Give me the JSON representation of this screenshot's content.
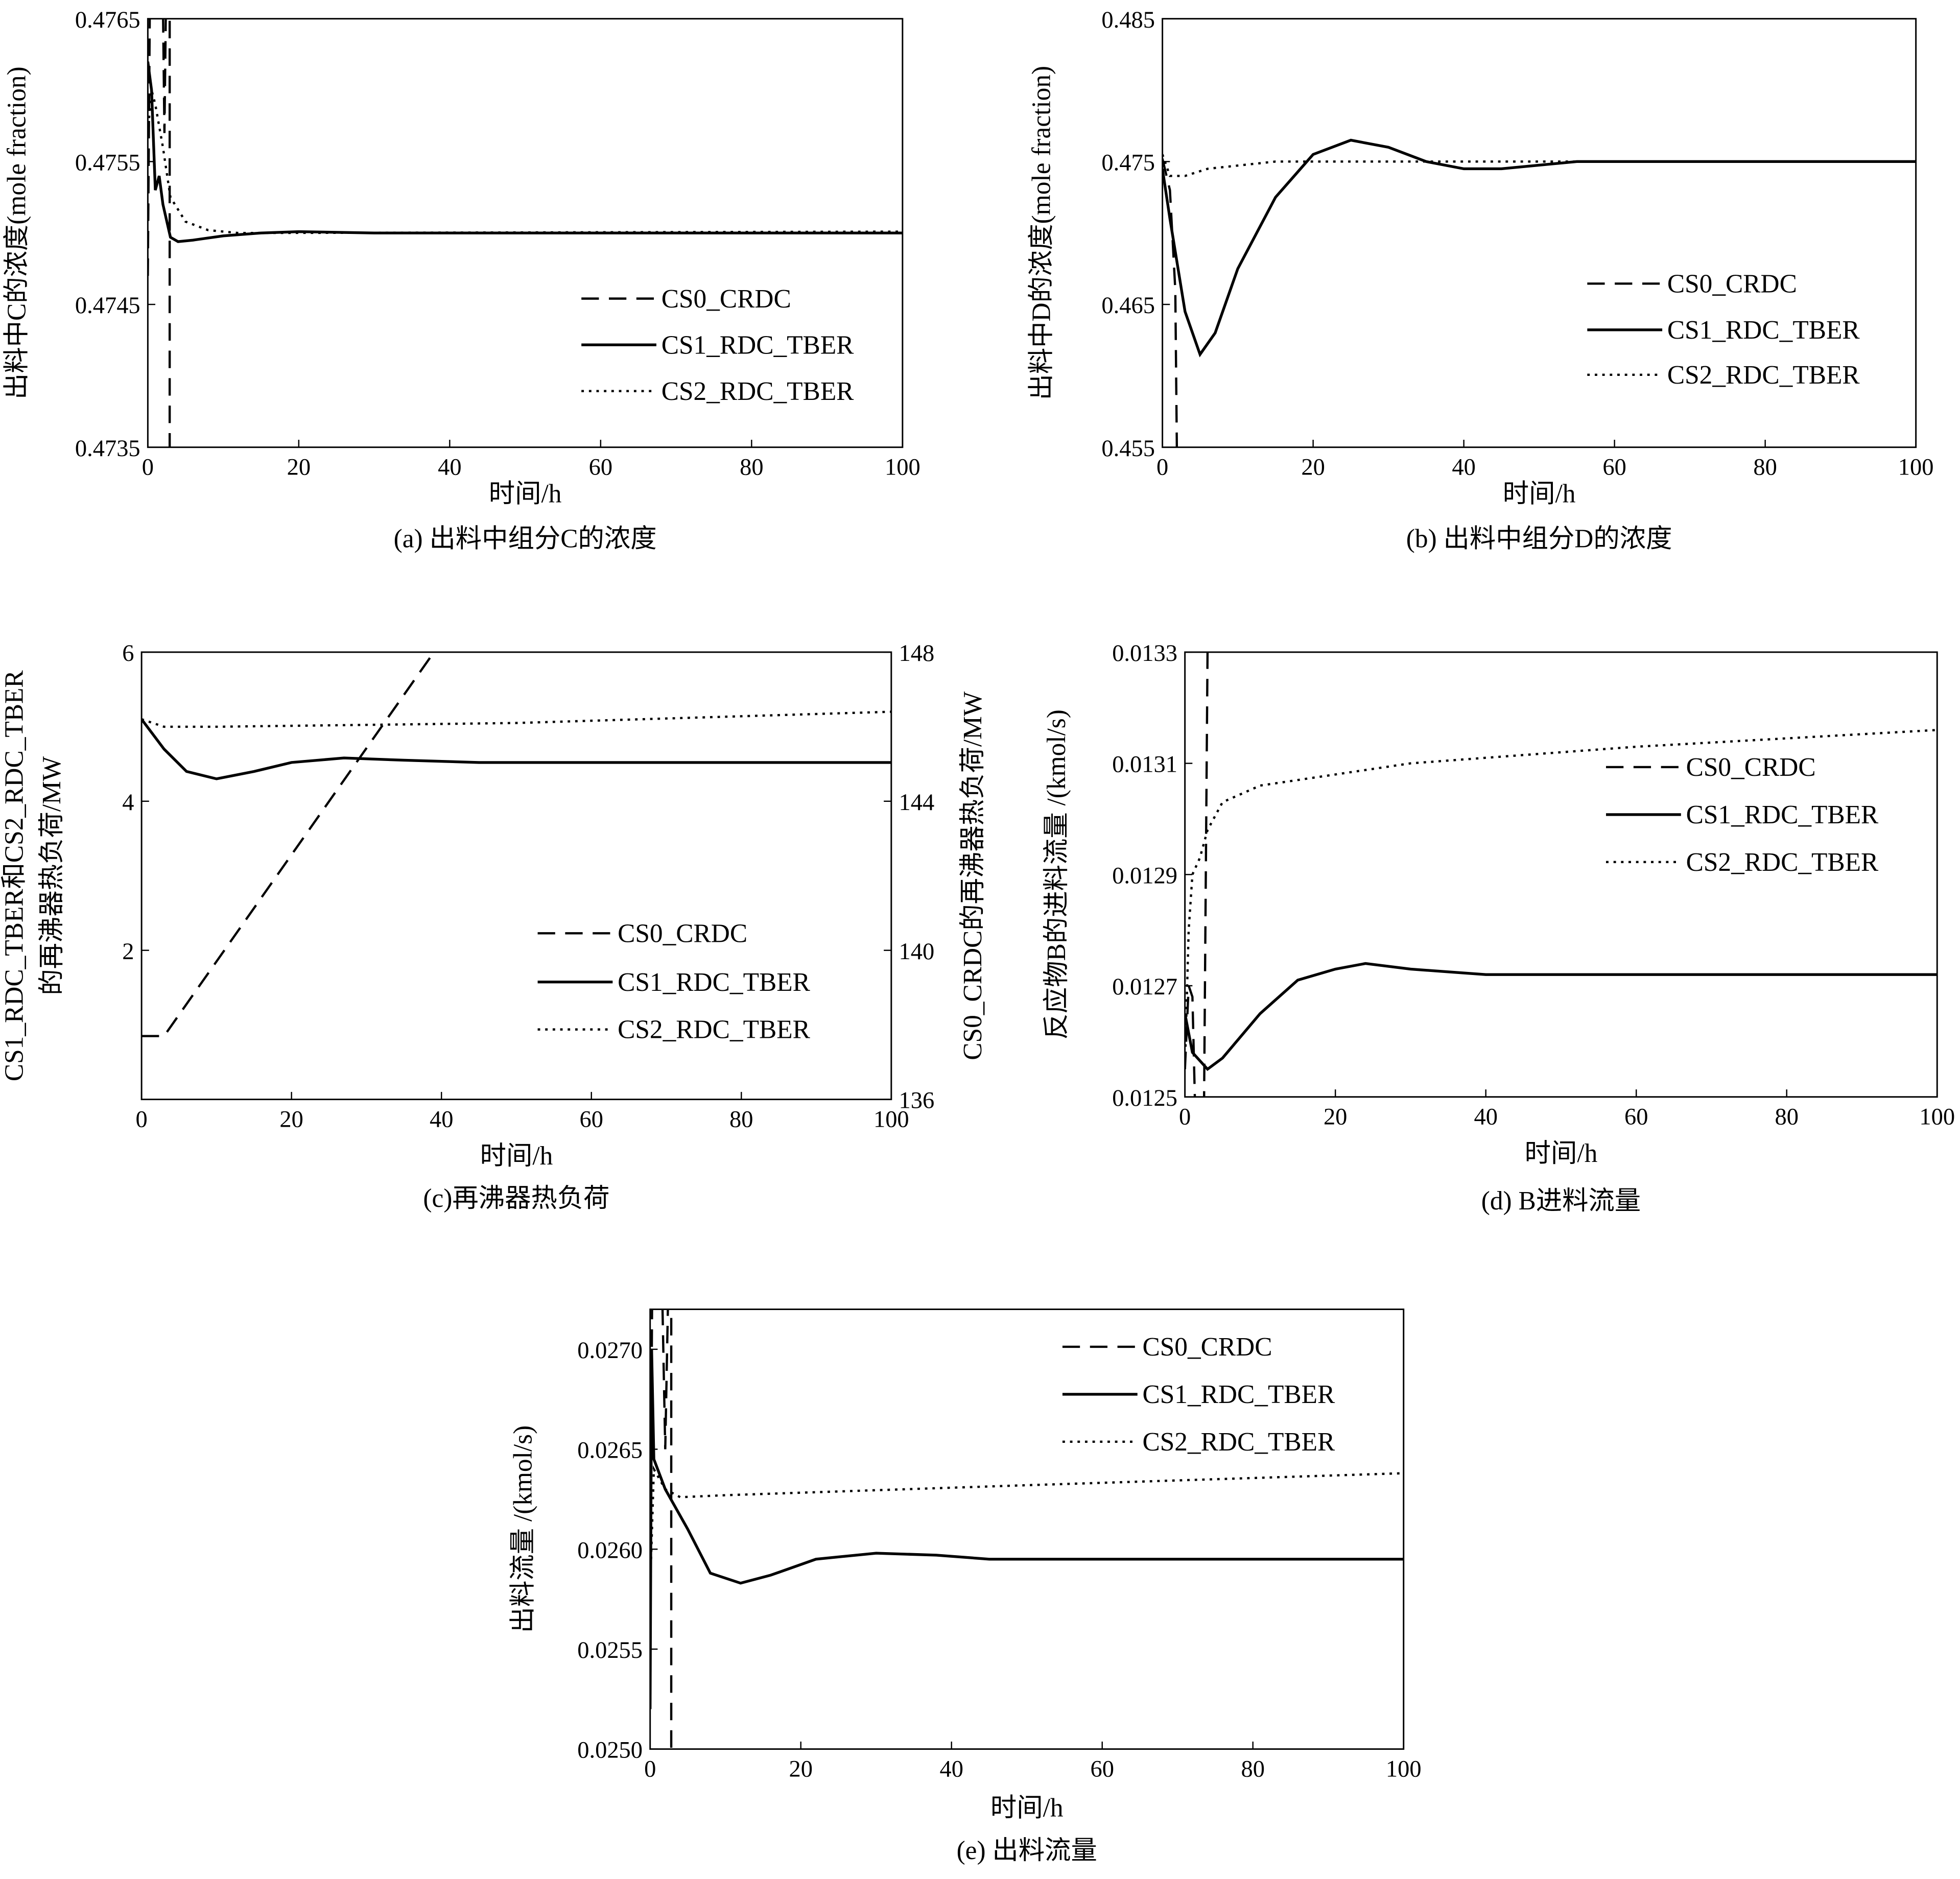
{
  "chart_data": [
    {
      "id": "a",
      "type": "line",
      "caption": "(a) 出料中组分C的浓度",
      "xlabel": "时间/h",
      "ylabel": [
        "出料中C的浓度(mole fraction)"
      ],
      "xlim": [
        0,
        100
      ],
      "ylim": [
        0.4735,
        0.4765
      ],
      "xticks": [
        "0",
        "20",
        "40",
        "60",
        "80",
        "100"
      ],
      "yticks": [
        "0.4735",
        "0.4745",
        "0.4755",
        "0.4765"
      ],
      "legend": "center-right",
      "series": [
        {
          "name": "CS0_CRDC",
          "style": "dashed",
          "points": [
            [
              0,
              0.4747
            ],
            [
              0.4,
              0.4775
            ],
            [
              1.8,
              0.4775
            ],
            [
              2.2,
              0.4757
            ],
            [
              2.6,
              0.4775
            ],
            [
              2.9,
              0.4775
            ],
            [
              2.9,
              0.473
            ]
          ]
        },
        {
          "name": "CS1_RDC_TBER",
          "style": "solid",
          "points": [
            [
              0,
              0.4762
            ],
            [
              0.5,
              0.476
            ],
            [
              1,
              0.4753
            ],
            [
              1.5,
              0.4754
            ],
            [
              2,
              0.4752
            ],
            [
              3,
              0.47497
            ],
            [
              4,
              0.47494
            ],
            [
              6,
              0.47495
            ],
            [
              10,
              0.47498
            ],
            [
              15,
              0.475
            ],
            [
              20,
              0.47501
            ],
            [
              30,
              0.475
            ],
            [
              100,
              0.475
            ]
          ]
        },
        {
          "name": "CS2_RDC_TBER",
          "style": "dotted",
          "points": [
            [
              0,
              0.4757
            ],
            [
              0.5,
              0.476
            ],
            [
              1,
              0.4759
            ],
            [
              2,
              0.4756
            ],
            [
              3,
              0.47525
            ],
            [
              5,
              0.47508
            ],
            [
              8,
              0.47502
            ],
            [
              12,
              0.475
            ],
            [
              100,
              0.47501
            ]
          ]
        }
      ]
    },
    {
      "id": "b",
      "type": "line",
      "caption": "(b) 出料中组分D的浓度",
      "xlabel": "时间/h",
      "ylabel": [
        "出料中D的浓度(mole fraction)"
      ],
      "xlim": [
        0,
        100
      ],
      "ylim": [
        0.455,
        0.485
      ],
      "xticks": [
        "0",
        "20",
        "40",
        "60",
        "80",
        "100"
      ],
      "yticks": [
        "0.455",
        "0.465",
        "0.475",
        "0.485"
      ],
      "legend": "center-right",
      "series": [
        {
          "name": "CS0_CRDC",
          "style": "dashed",
          "points": [
            [
              0,
              0.4752
            ],
            [
              1,
              0.473
            ],
            [
              1.7,
              0.466
            ],
            [
              2,
              0.45
            ]
          ]
        },
        {
          "name": "CS1_RDC_TBER",
          "style": "solid",
          "points": [
            [
              0,
              0.4745
            ],
            [
              1,
              0.471
            ],
            [
              3,
              0.4645
            ],
            [
              5,
              0.4615
            ],
            [
              7,
              0.463
            ],
            [
              10,
              0.4675
            ],
            [
              15,
              0.4725
            ],
            [
              20,
              0.4755
            ],
            [
              25,
              0.4765
            ],
            [
              30,
              0.476
            ],
            [
              35,
              0.475
            ],
            [
              40,
              0.4745
            ],
            [
              45,
              0.4745
            ],
            [
              55,
              0.475
            ],
            [
              100,
              0.475
            ]
          ]
        },
        {
          "name": "CS2_RDC_TBER",
          "style": "dotted",
          "points": [
            [
              0,
              0.4755
            ],
            [
              1,
              0.474
            ],
            [
              3,
              0.474
            ],
            [
              6,
              0.4745
            ],
            [
              15,
              0.475
            ],
            [
              100,
              0.475
            ]
          ]
        }
      ]
    },
    {
      "id": "c",
      "type": "line",
      "caption": "(c)再沸器热负荷",
      "xlabel": "时间/h",
      "ylabel": [
        "CS1_RDC_TBER和CS2_RDC_TBER",
        "的再沸器热负荷/MW"
      ],
      "ylabel_right": "CS0_CRDC的再沸器热负荷/MW",
      "xlim": [
        0,
        100
      ],
      "ylim": [
        0,
        6
      ],
      "ylim_right": [
        136,
        148
      ],
      "xticks": [
        "0",
        "20",
        "40",
        "60",
        "80",
        "100"
      ],
      "yticks": [
        "2",
        "4",
        "6"
      ],
      "yticks_right": [
        "136",
        "140",
        "144",
        "148"
      ],
      "legend": "center-right",
      "series": [
        {
          "name": "CS0_CRDC",
          "style": "dashed",
          "axis": "right",
          "points": [
            [
              0,
              137.7
            ],
            [
              3,
              137.7
            ],
            [
              39,
              148
            ]
          ]
        },
        {
          "name": "CS1_RDC_TBER",
          "style": "solid",
          "points": [
            [
              0,
              5.1
            ],
            [
              3,
              4.7
            ],
            [
              6,
              4.4
            ],
            [
              10,
              4.3
            ],
            [
              15,
              4.4
            ],
            [
              20,
              4.52
            ],
            [
              27,
              4.58
            ],
            [
              35,
              4.55
            ],
            [
              45,
              4.52
            ],
            [
              100,
              4.52
            ]
          ]
        },
        {
          "name": "CS2_RDC_TBER",
          "style": "dotted",
          "points": [
            [
              0,
              5.1
            ],
            [
              3,
              5.0
            ],
            [
              10,
              5.0
            ],
            [
              50,
              5.05
            ],
            [
              100,
              5.2
            ]
          ]
        }
      ]
    },
    {
      "id": "d",
      "type": "line",
      "caption": "(d) B进料流量",
      "xlabel": "时间/h",
      "ylabel": [
        "反应物B的进料流量 /(kmol/s)"
      ],
      "xlim": [
        0,
        100
      ],
      "ylim": [
        0.0125,
        0.0133
      ],
      "xticks": [
        "0",
        "20",
        "40",
        "60",
        "80",
        "100"
      ],
      "yticks": [
        "0.0125",
        "0.0127",
        "0.0129",
        "0.0131",
        "0.0133"
      ],
      "legend": "center-right",
      "series": [
        {
          "name": "CS0_CRDC",
          "style": "dashed",
          "points": [
            [
              0,
              0.01255
            ],
            [
              0.5,
              0.0127
            ],
            [
              1,
              0.01268
            ],
            [
              1.5,
              0.0124
            ],
            [
              2.5,
              0.0124
            ],
            [
              3,
              0.0133
            ]
          ]
        },
        {
          "name": "CS1_RDC_TBER",
          "style": "solid",
          "points": [
            [
              0,
              0.01265
            ],
            [
              1,
              0.01258
            ],
            [
              3,
              0.01255
            ],
            [
              5,
              0.01257
            ],
            [
              10,
              0.01265
            ],
            [
              15,
              0.01271
            ],
            [
              20,
              0.01273
            ],
            [
              24,
              0.01274
            ],
            [
              30,
              0.01273
            ],
            [
              40,
              0.01272
            ],
            [
              100,
              0.01272
            ]
          ]
        },
        {
          "name": "CS2_RDC_TBER",
          "style": "dotted",
          "points": [
            [
              0,
              0.01255
            ],
            [
              0.5,
              0.0128
            ],
            [
              1,
              0.0129
            ],
            [
              2,
              0.01293
            ],
            [
              3,
              0.01298
            ],
            [
              5,
              0.01303
            ],
            [
              10,
              0.01306
            ],
            [
              30,
              0.0131
            ],
            [
              60,
              0.01313
            ],
            [
              100,
              0.01316
            ]
          ]
        }
      ]
    },
    {
      "id": "e",
      "type": "line",
      "caption": "(e) 出料流量",
      "xlabel": "时间/h",
      "ylabel": [
        "出料流量 /(kmol/s)"
      ],
      "xlim": [
        0,
        100
      ],
      "ylim": [
        0.025,
        0.0272
      ],
      "xticks": [
        "0",
        "20",
        "40",
        "60",
        "80",
        "100"
      ],
      "yticks": [
        "0.0250",
        "0.0255",
        "0.0260",
        "0.0265",
        "0.0270"
      ],
      "legend": "top-right",
      "series": [
        {
          "name": "CS0_CRDC",
          "style": "dashed",
          "points": [
            [
              0,
              0.0255
            ],
            [
              0.3,
              0.0275
            ],
            [
              1.5,
              0.0275
            ],
            [
              2,
              0.0265
            ],
            [
              2.5,
              0.0275
            ],
            [
              2.8,
              0.0275
            ],
            [
              2.8,
              0.0248
            ]
          ]
        },
        {
          "name": "CS1_RDC_TBER",
          "style": "solid",
          "points": [
            [
              0,
              0.0252
            ],
            [
              0.2,
              0.027
            ],
            [
              0.5,
              0.02645
            ],
            [
              2,
              0.0263
            ],
            [
              5,
              0.0261
            ],
            [
              8,
              0.02588
            ],
            [
              12,
              0.02583
            ],
            [
              16,
              0.02587
            ],
            [
              22,
              0.02595
            ],
            [
              30,
              0.02598
            ],
            [
              38,
              0.02597
            ],
            [
              45,
              0.02595
            ],
            [
              100,
              0.02595
            ]
          ]
        },
        {
          "name": "CS2_RDC_TBER",
          "style": "dotted",
          "points": [
            [
              0,
              0.0258
            ],
            [
              0.5,
              0.0264
            ],
            [
              2,
              0.0263
            ],
            [
              4,
              0.02626
            ],
            [
              10,
              0.02627
            ],
            [
              50,
              0.02632
            ],
            [
              100,
              0.02638
            ]
          ]
        }
      ]
    }
  ]
}
